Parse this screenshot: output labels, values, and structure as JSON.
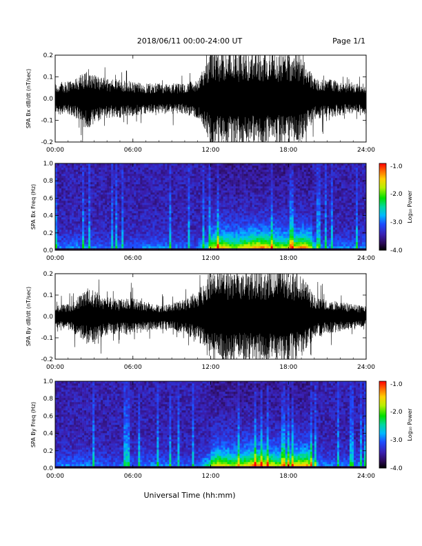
{
  "header": {
    "title": "2018/06/11   00:00-24:00 UT",
    "page": "Page 1/1"
  },
  "footer": {
    "xlabel": "Universal Time (hh:mm)"
  },
  "colorbar": {
    "label": "Log₁₀ Power",
    "ticks": [
      "-1.0",
      "-2.0",
      "-3.0",
      "-4.0"
    ],
    "range": [
      -4.0,
      -1.0
    ]
  },
  "chart_data": [
    {
      "type": "line",
      "ylabel": "SPA Bx dB/dt (nT/sec)",
      "xlim": [
        0,
        24
      ],
      "ylim": [
        -0.2,
        0.2
      ],
      "xticks": [
        "00:00",
        "06:00",
        "12:00",
        "18:00",
        "24:00"
      ],
      "yticks": [
        "0.2",
        "0.1",
        "0.0",
        "-0.1",
        "-0.2"
      ],
      "series": [
        {
          "name": "",
          "amplitude_envelope": {
            "x": [
              0,
              1,
              2,
              2.5,
              3,
              4,
              5,
              6,
              7,
              8,
              9,
              10,
              11,
              11.5,
              12,
              13,
              14,
              15,
              16,
              17,
              18,
              19,
              19.5,
              20,
              21,
              22,
              23,
              24
            ],
            "y": [
              0.07,
              0.08,
              0.11,
              0.14,
              0.12,
              0.09,
              0.09,
              0.08,
              0.07,
              0.07,
              0.07,
              0.07,
              0.09,
              0.14,
              0.22,
              0.22,
              0.22,
              0.22,
              0.22,
              0.22,
              0.22,
              0.2,
              0.14,
              0.1,
              0.09,
              0.08,
              0.07,
              0.07
            ]
          }
        }
      ]
    },
    {
      "type": "heatmap",
      "ylabel": "SPA Bx Freq (Hz)",
      "xlim": [
        0,
        24
      ],
      "ylim": [
        0.0,
        1.0
      ],
      "xticks": [
        "00:00",
        "06:00",
        "12:00",
        "18:00",
        "24:00"
      ],
      "yticks": [
        "1.0",
        "0.8",
        "0.6",
        "0.4",
        "0.2",
        "0.0"
      ],
      "zlabel": "Log₁₀ Power",
      "zlim": [
        -4.0,
        -1.0
      ]
    },
    {
      "type": "line",
      "ylabel": "SPA By dB/dt (nT/sec)",
      "xlim": [
        0,
        24
      ],
      "ylim": [
        -0.2,
        0.2
      ],
      "xticks": [
        "00:00",
        "06:00",
        "12:00",
        "18:00",
        "24:00"
      ],
      "yticks": [
        "0.2",
        "0.1",
        "0.0",
        "-0.1",
        "-0.2"
      ],
      "series": [
        {
          "name": "",
          "amplitude_envelope": {
            "x": [
              0,
              1,
              2,
              2.5,
              3,
              4,
              5,
              6,
              7,
              8,
              9,
              10,
              11,
              11.5,
              12,
              13,
              14,
              15,
              16,
              17,
              18,
              19,
              19.5,
              20,
              21,
              22,
              23,
              24
            ],
            "y": [
              0.05,
              0.06,
              0.1,
              0.13,
              0.12,
              0.09,
              0.08,
              0.09,
              0.07,
              0.06,
              0.06,
              0.08,
              0.12,
              0.16,
              0.22,
              0.22,
              0.22,
              0.22,
              0.22,
              0.22,
              0.22,
              0.2,
              0.15,
              0.1,
              0.08,
              0.07,
              0.06,
              0.05
            ]
          }
        }
      ]
    },
    {
      "type": "heatmap",
      "ylabel": "SPA By Freq (Hz)",
      "xlim": [
        0,
        24
      ],
      "ylim": [
        0.0,
        1.0
      ],
      "xticks": [
        "00:00",
        "06:00",
        "12:00",
        "18:00",
        "24:00"
      ],
      "yticks": [
        "1.0",
        "0.8",
        "0.6",
        "0.4",
        "0.2",
        "0.0"
      ],
      "zlabel": "Log₁₀ Power",
      "zlim": [
        -4.0,
        -1.0
      ]
    }
  ]
}
